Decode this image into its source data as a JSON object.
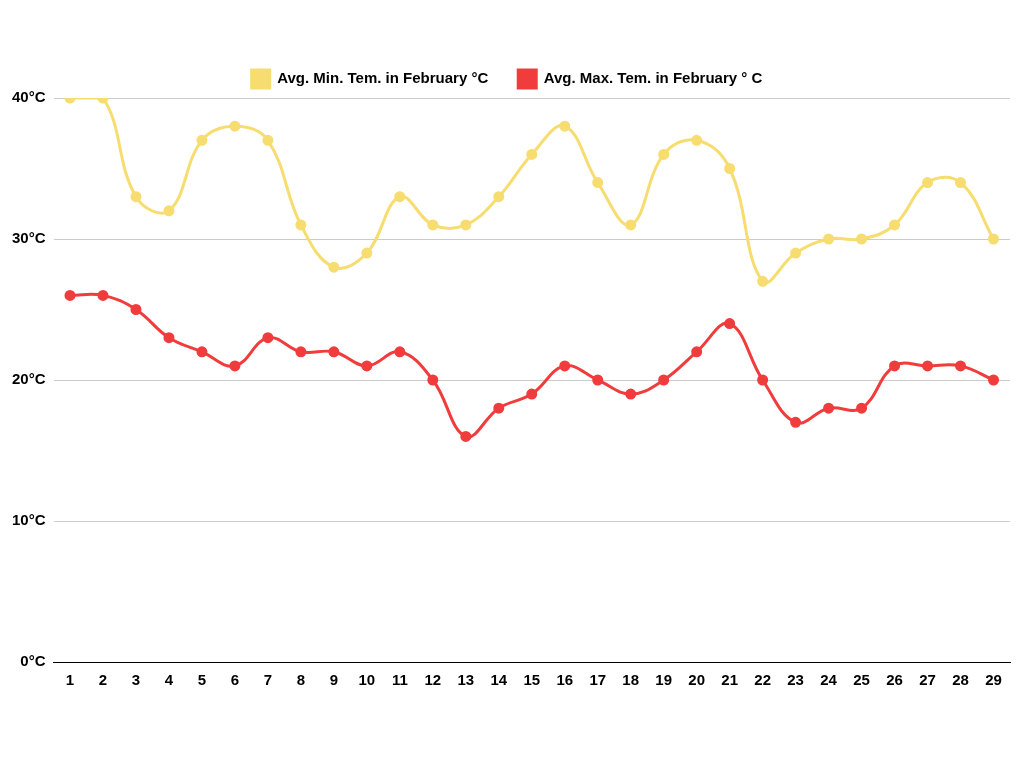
{
  "chart_data": {
    "type": "line",
    "categories": [
      "1",
      "2",
      "3",
      "4",
      "5",
      "6",
      "7",
      "8",
      "9",
      "10",
      "11",
      "12",
      "13",
      "14",
      "15",
      "16",
      "17",
      "18",
      "19",
      "20",
      "21",
      "22",
      "23",
      "24",
      "25",
      "26",
      "27",
      "28",
      "29"
    ],
    "series": [
      {
        "name": "Avg. Min. Tem. in February °C",
        "color": "#f7dc6f",
        "marker": "circle",
        "line_style": "solid",
        "values": [
          40,
          40,
          33,
          32,
          37,
          38,
          37,
          31,
          28,
          29,
          33,
          31,
          31,
          33,
          36,
          38,
          34,
          31,
          36,
          37,
          35,
          27,
          29,
          30,
          30,
          31,
          34,
          34,
          30
        ]
      },
      {
        "name": "Avg. Max. Tem. in February ° C",
        "color": "#f03c3c",
        "marker": "circle",
        "line_style": "solid",
        "values": [
          26,
          26,
          25,
          23,
          22,
          21,
          23,
          22,
          22,
          21,
          22,
          20,
          16,
          18,
          19,
          21,
          20,
          19,
          20,
          22,
          24,
          20,
          17,
          18,
          18,
          21,
          21,
          21,
          20
        ]
      }
    ],
    "ylim": [
      0,
      40
    ],
    "yticks": [
      {
        "value": 0,
        "label": "0°C"
      },
      {
        "value": 10,
        "label": "10°C"
      },
      {
        "value": 20,
        "label": "20°C"
      },
      {
        "value": 30,
        "label": "30°C"
      },
      {
        "value": 40,
        "label": "40°C"
      }
    ],
    "grid": true,
    "legend": "top"
  }
}
